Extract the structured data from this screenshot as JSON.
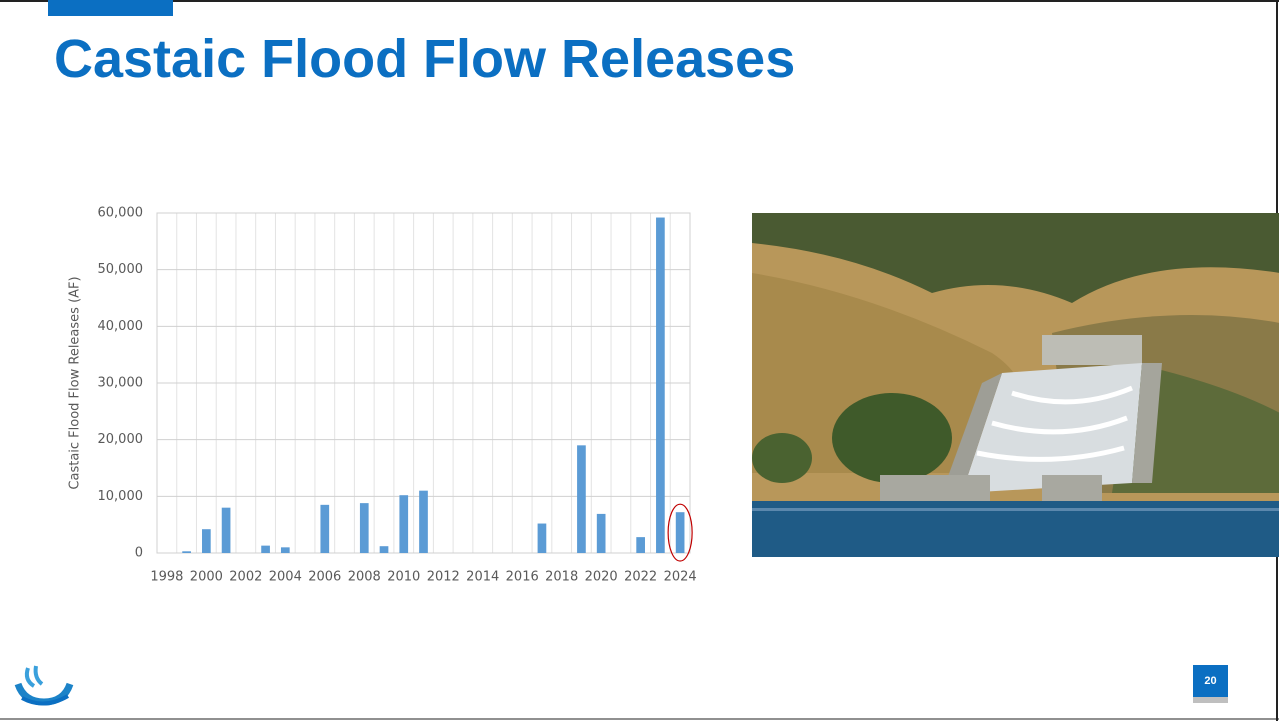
{
  "slide": {
    "title": "Castaic Flood Flow Releases",
    "page_number": "20"
  },
  "chart_data": {
    "type": "bar",
    "y_label": "Castaic Flood Flow Releases (AF)",
    "categories": [
      "1998",
      null,
      "2000",
      null,
      "2002",
      null,
      "2004",
      null,
      "2006",
      null,
      "2008",
      null,
      "2010",
      null,
      "2012",
      null,
      "2014",
      null,
      "2016",
      null,
      "2018",
      null,
      "2020",
      null,
      "2022",
      null,
      "2024"
    ],
    "values": [
      0,
      300,
      4200,
      8000,
      0,
      1300,
      1000,
      0,
      8500,
      0,
      8800,
      1200,
      10200,
      11000,
      0,
      0,
      0,
      0,
      0,
      5200,
      0,
      19000,
      6900,
      0,
      2800,
      59200,
      7200
    ],
    "color": "#5b9bd5",
    "ylim": [
      0,
      60000
    ],
    "yticks": [
      0,
      {
        "value": 10000,
        "label": "10,000"
      },
      {
        "value": 20000,
        "label": "20,000"
      },
      {
        "value": 30000,
        "label": "30,000"
      },
      {
        "value": 40000,
        "label": "40,000"
      },
      {
        "value": 50000,
        "label": "50,000"
      },
      {
        "value": 60000,
        "label": "60,000"
      }
    ],
    "grid": true
  }
}
